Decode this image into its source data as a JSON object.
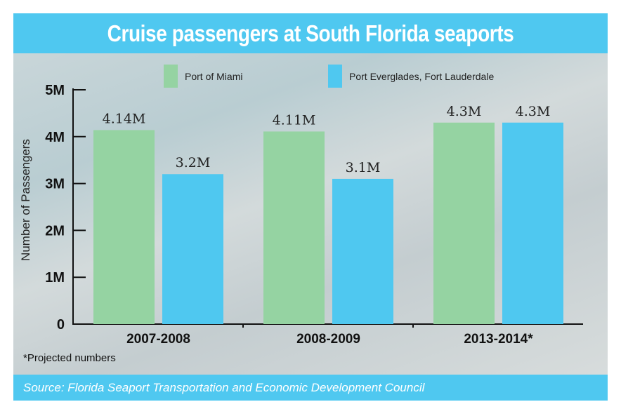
{
  "chart_data": {
    "type": "bar",
    "title": "Cruise passengers at South Florida seaports",
    "ylabel": "Number of Passengers",
    "xlabel": "",
    "ylim": [
      0,
      5
    ],
    "yticks": [
      "0",
      "1M",
      "2M",
      "3M",
      "4M",
      "5M"
    ],
    "categories": [
      "2007-2008",
      "2008-2009",
      "2013-2014*"
    ],
    "series": [
      {
        "name": "Port of Miami",
        "color": "#95d3a2",
        "values": [
          4.14,
          4.11,
          4.3
        ],
        "labels": [
          "4.14M",
          "4.11M",
          "4.3M"
        ]
      },
      {
        "name": "Port Everglades, Fort Lauderdale",
        "color": "#4fc8f0",
        "values": [
          3.2,
          3.1,
          4.3
        ],
        "labels": [
          "3.2M",
          "3.1M",
          "4.3M"
        ]
      }
    ],
    "legend": "top",
    "grid": false,
    "note": "*Projected numbers",
    "source": "Source: Florida Seaport Transportation and Economic Development Council"
  }
}
